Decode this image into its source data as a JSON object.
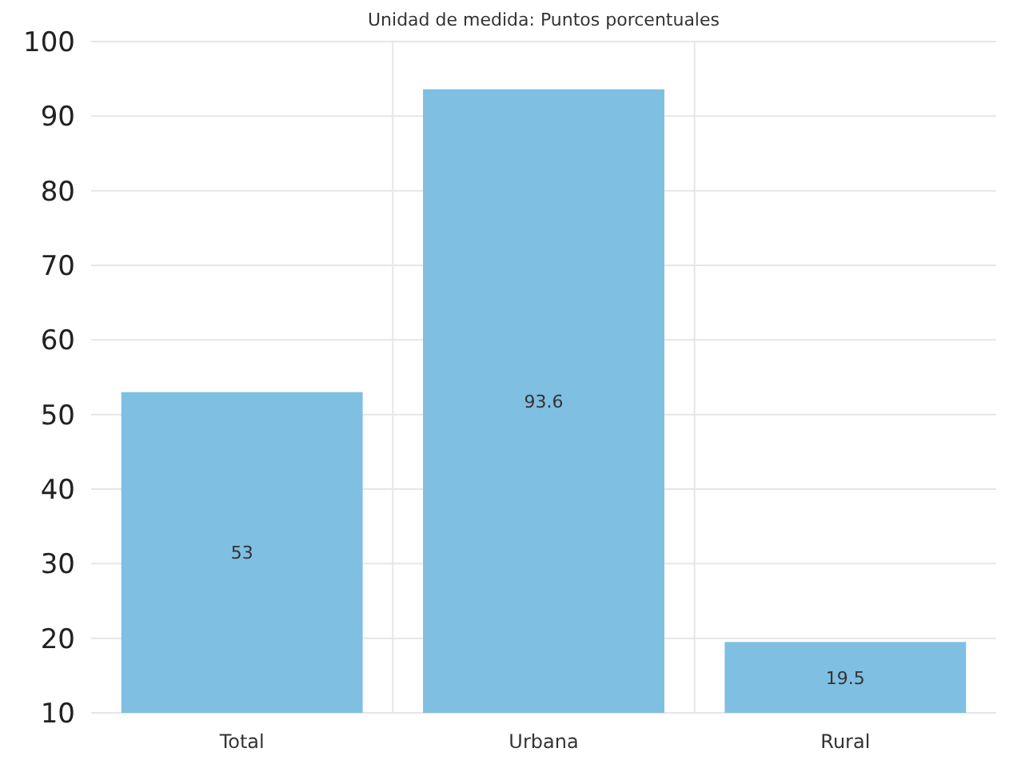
{
  "chart_data": {
    "type": "bar",
    "subtitle": "Unidad de medida: Puntos porcentuales",
    "categories": [
      "Total",
      "Urbana",
      "Rural"
    ],
    "values": [
      53,
      93.6,
      19.5
    ],
    "color": "#7fbfe1",
    "ylim": [
      10,
      100
    ],
    "yticks": [
      10,
      20,
      30,
      40,
      50,
      60,
      70,
      80,
      90,
      100
    ],
    "grid": true,
    "data_labels": true
  }
}
